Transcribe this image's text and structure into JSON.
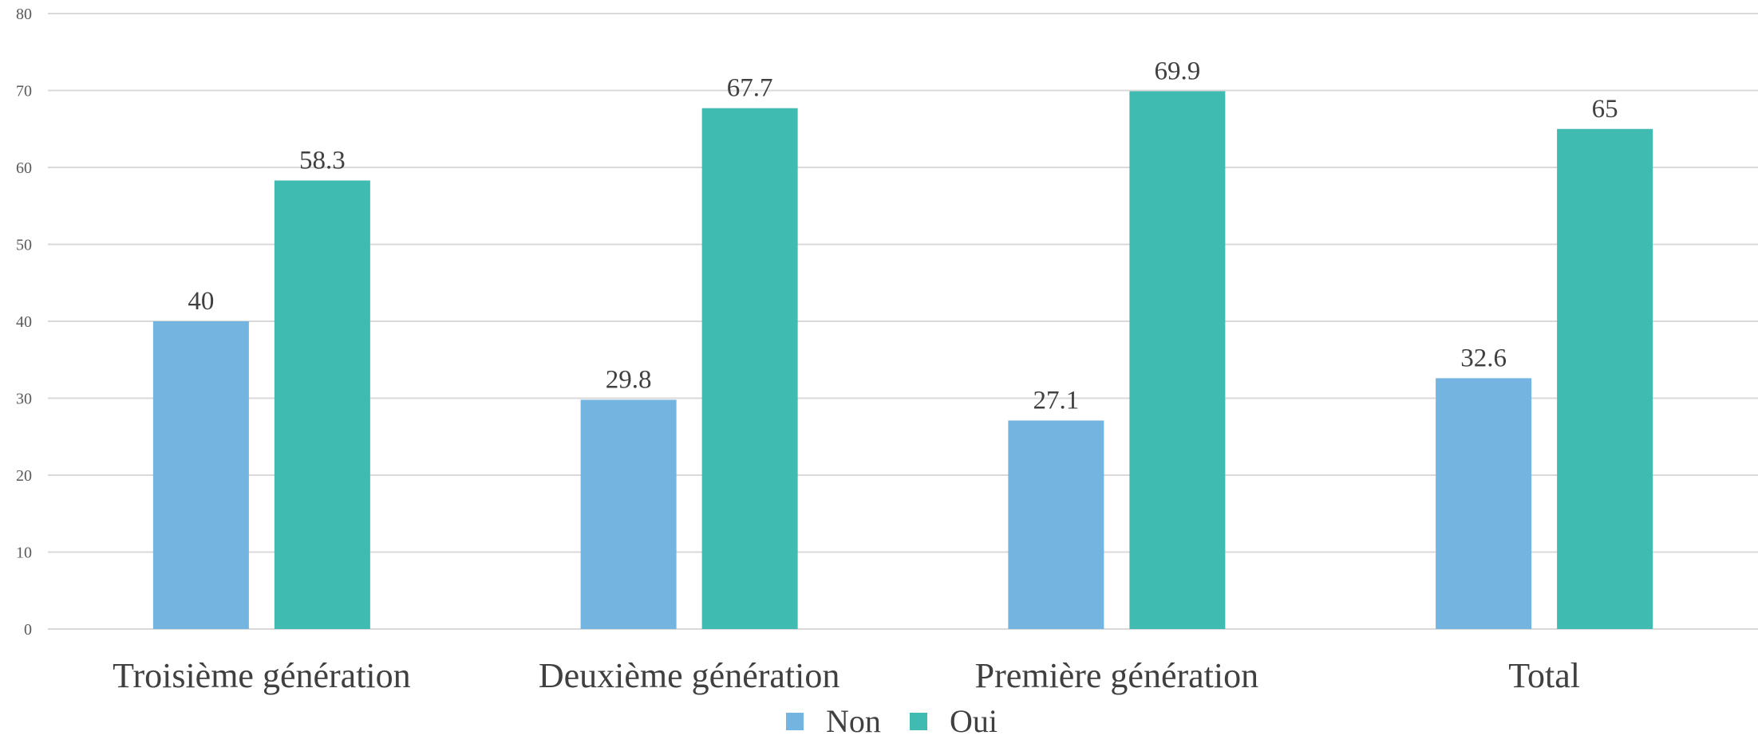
{
  "chart_data": {
    "type": "bar",
    "title": "",
    "xlabel": "",
    "ylabel": "",
    "categories": [
      "Troisième génération",
      "Deuxième génération",
      "Première génération",
      "Total"
    ],
    "series": [
      {
        "name": "Non",
        "color": "#73b4e0",
        "values": [
          40,
          29.8,
          27.1,
          32.6
        ]
      },
      {
        "name": "Oui",
        "color": "#40bbb1",
        "values": [
          58.3,
          67.7,
          69.9,
          65
        ]
      }
    ],
    "ylim": [
      0,
      80
    ],
    "yticks": [
      0,
      10,
      20,
      30,
      40,
      50,
      60,
      70,
      80
    ],
    "grid": true,
    "legend_position": "bottom"
  }
}
